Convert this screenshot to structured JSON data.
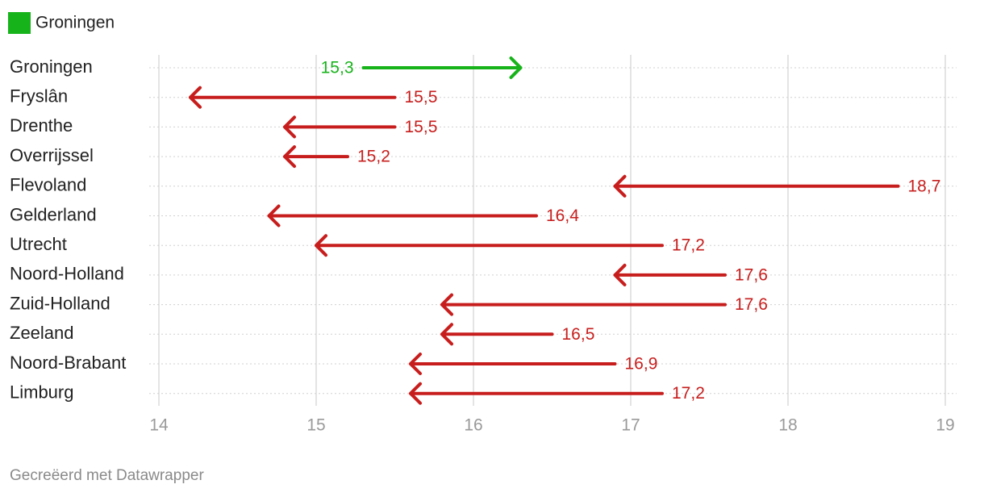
{
  "chart_data": {
    "type": "arrow",
    "legend": [
      {
        "label": "Groningen",
        "color": "#17b31a"
      }
    ],
    "categories": [
      "Groningen",
      "Fryslân",
      "Drenthe",
      "Overrijssel",
      "Flevoland",
      "Gelderland",
      "Utrecht",
      "Noord-Holland",
      "Zuid-Holland",
      "Zeeland",
      "Noord-Brabant",
      "Limburg"
    ],
    "start": [
      15.3,
      15.5,
      15.5,
      15.2,
      18.7,
      16.4,
      17.2,
      17.6,
      17.6,
      16.5,
      16.9,
      17.2
    ],
    "value_labels": [
      "15,3",
      "15,5",
      "15,5",
      "15,2",
      "18,7",
      "16,4",
      "17,2",
      "17,6",
      "17,6",
      "16,5",
      "16,9",
      "17,2"
    ],
    "end": [
      16.3,
      14.2,
      14.8,
      14.8,
      16.9,
      14.7,
      15.0,
      16.9,
      15.8,
      15.8,
      15.6,
      15.6
    ],
    "colors": [
      "#17b31a",
      "#c71e1d",
      "#c71e1d",
      "#c71e1d",
      "#c71e1d",
      "#c71e1d",
      "#c71e1d",
      "#c71e1d",
      "#c71e1d",
      "#c71e1d",
      "#c71e1d",
      "#c71e1d"
    ],
    "xlim": [
      14,
      19
    ],
    "xticks": [
      14,
      15,
      16,
      17,
      18,
      19
    ],
    "grid": true,
    "source": "Gecreëerd met Datawrapper"
  }
}
